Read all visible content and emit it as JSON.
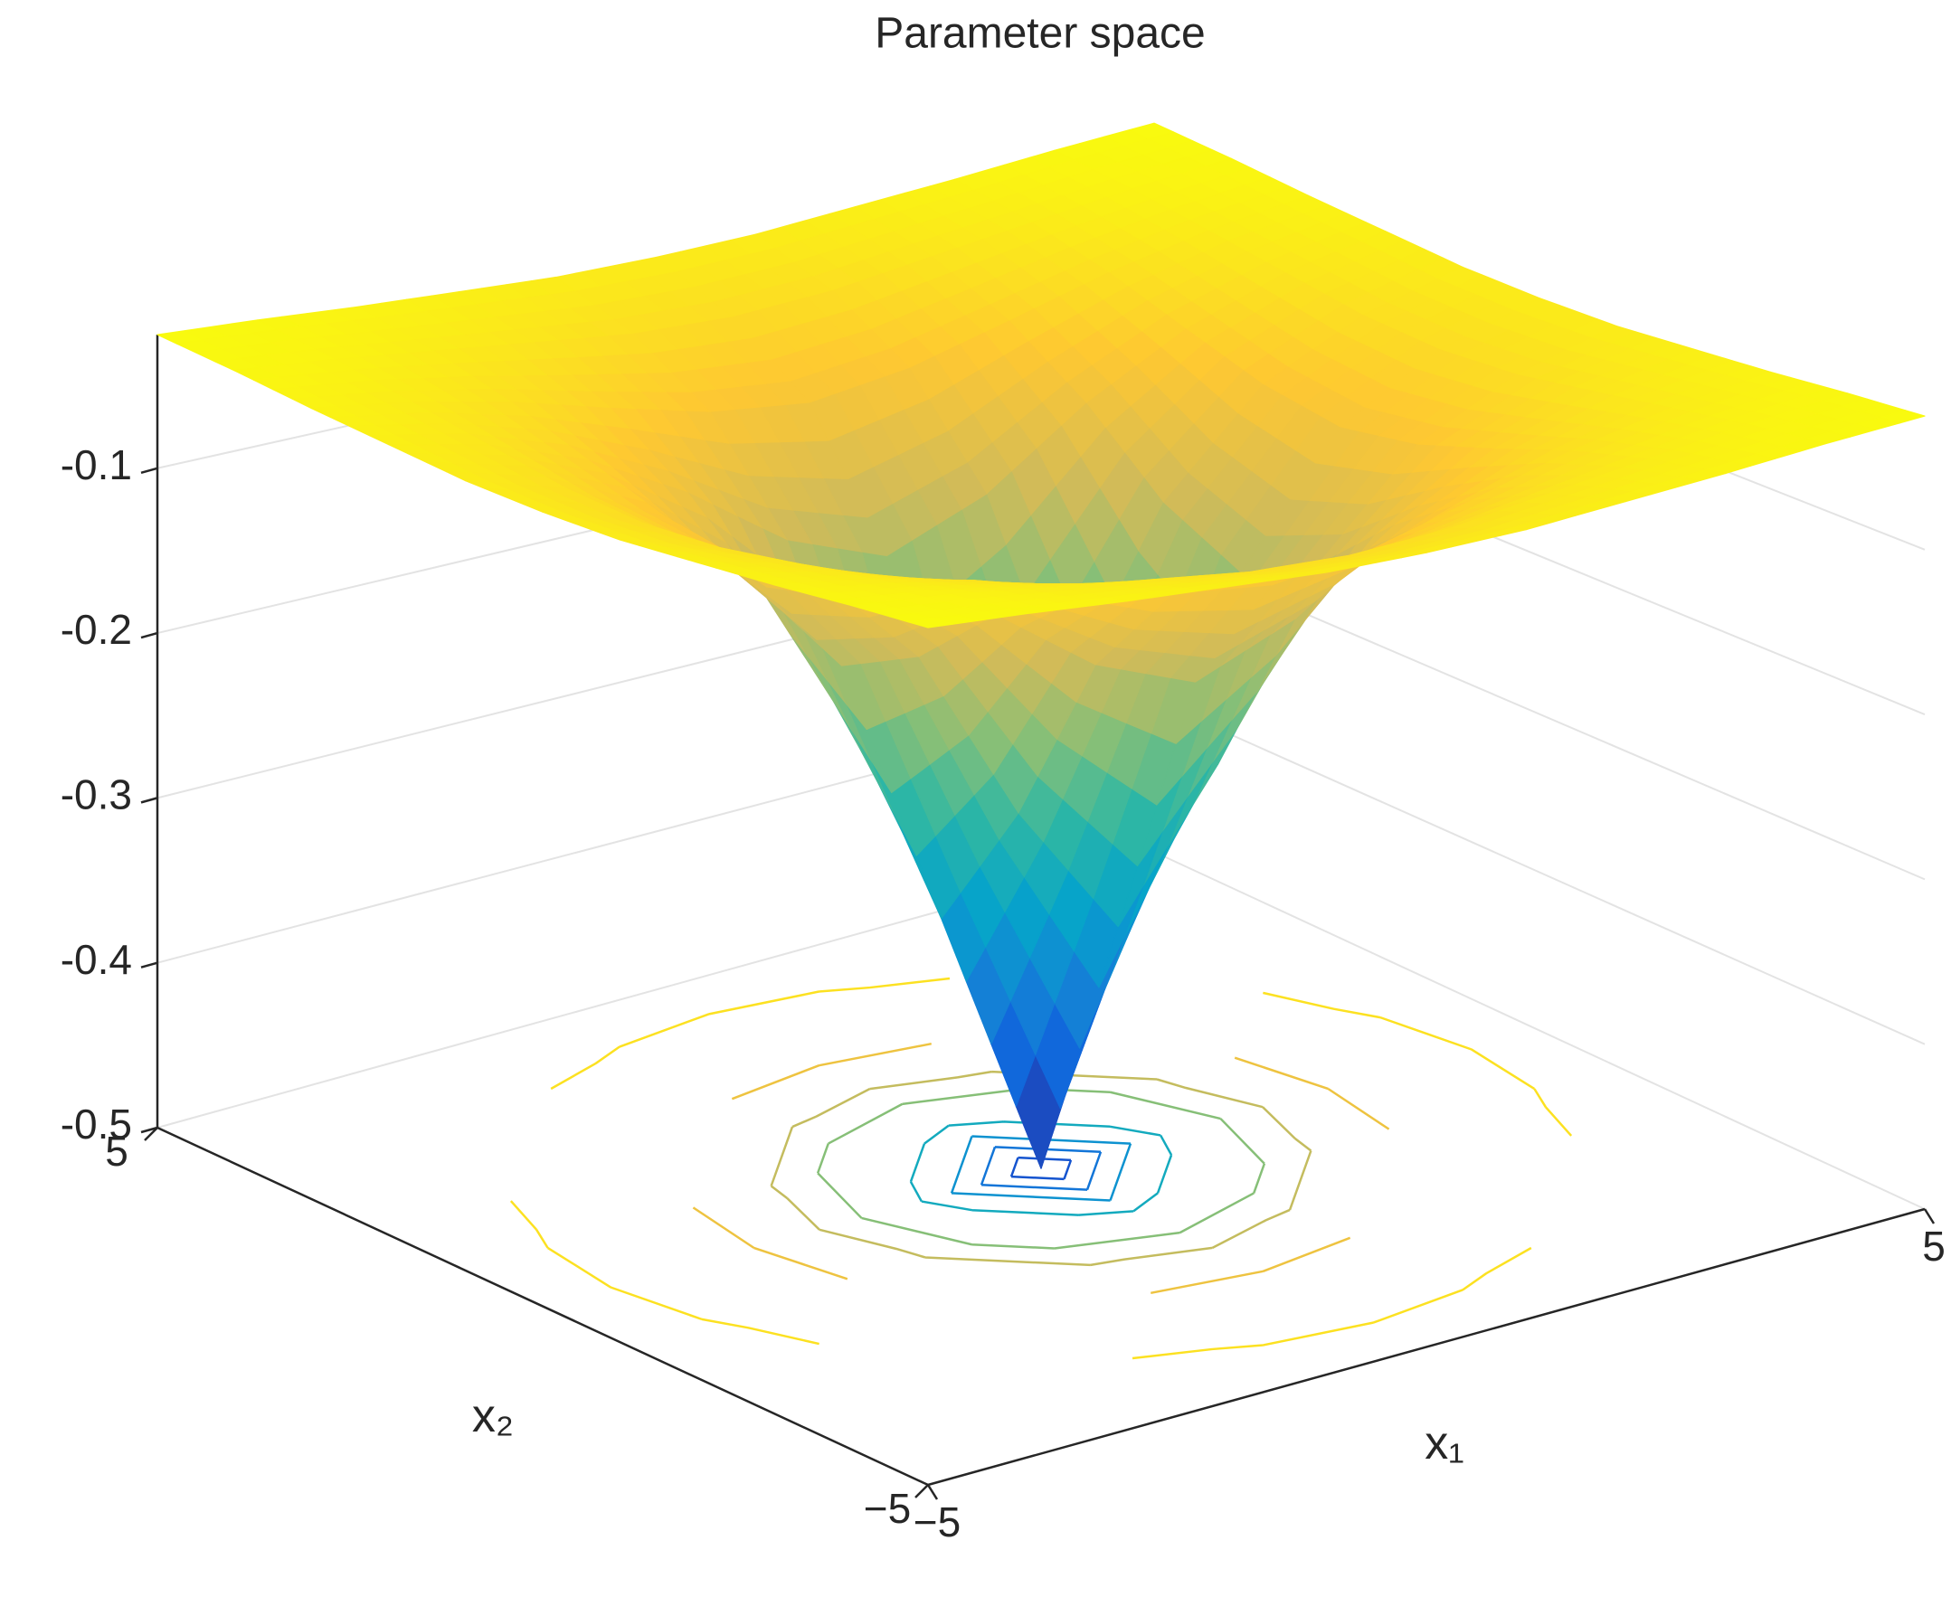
{
  "chart_data": {
    "type": "surface",
    "title": "Parameter space",
    "xlabel": "x₁",
    "ylabel": "x₂",
    "x": [
      -5,
      -4,
      -3,
      -2,
      -1,
      0,
      1,
      2,
      3,
      4,
      5
    ],
    "y": [
      -5,
      -4,
      -3,
      -2,
      -1,
      0,
      1,
      2,
      3,
      4,
      5
    ],
    "z": [
      [
        -0.019,
        -0.023,
        -0.028,
        -0.032,
        -0.036,
        -0.037,
        -0.036,
        -0.032,
        -0.028,
        -0.023,
        -0.019
      ],
      [
        -0.023,
        -0.029,
        -0.037,
        -0.045,
        -0.053,
        -0.056,
        -0.053,
        -0.045,
        -0.037,
        -0.029,
        -0.023
      ],
      [
        -0.028,
        -0.037,
        -0.05,
        -0.067,
        -0.083,
        -0.091,
        -0.083,
        -0.067,
        -0.05,
        -0.037,
        -0.028
      ],
      [
        -0.032,
        -0.045,
        -0.067,
        -0.1,
        -0.143,
        -0.167,
        -0.143,
        -0.1,
        -0.067,
        -0.045,
        -0.032
      ],
      [
        -0.036,
        -0.053,
        -0.083,
        -0.143,
        -0.25,
        -0.333,
        -0.25,
        -0.143,
        -0.083,
        -0.053,
        -0.036
      ],
      [
        -0.037,
        -0.056,
        -0.091,
        -0.167,
        -0.333,
        -0.5,
        -0.333,
        -0.167,
        -0.091,
        -0.056,
        -0.037
      ],
      [
        -0.036,
        -0.053,
        -0.083,
        -0.143,
        -0.25,
        -0.333,
        -0.25,
        -0.143,
        -0.083,
        -0.053,
        -0.036
      ],
      [
        -0.032,
        -0.045,
        -0.067,
        -0.1,
        -0.143,
        -0.167,
        -0.143,
        -0.1,
        -0.067,
        -0.045,
        -0.032
      ],
      [
        -0.028,
        -0.037,
        -0.05,
        -0.067,
        -0.083,
        -0.091,
        -0.083,
        -0.067,
        -0.05,
        -0.037,
        -0.028
      ],
      [
        -0.023,
        -0.029,
        -0.037,
        -0.045,
        -0.053,
        -0.056,
        -0.053,
        -0.045,
        -0.037,
        -0.029,
        -0.023
      ],
      [
        -0.019,
        -0.023,
        -0.028,
        -0.032,
        -0.036,
        -0.037,
        -0.036,
        -0.032,
        -0.028,
        -0.023,
        -0.019
      ]
    ],
    "xlim": [
      -5,
      5
    ],
    "ylim": [
      -5,
      5
    ],
    "zlim": [
      -0.5,
      -0.019
    ],
    "xticks": [
      {
        "value": -5,
        "label": "−5"
      },
      5
    ],
    "yticks": [
      {
        "value": -5,
        "label": "−5"
      },
      5
    ],
    "zticks": [
      -0.5,
      -0.4,
      -0.3,
      -0.2,
      -0.1
    ],
    "contour_levels": [
      -0.45,
      -0.4,
      -0.35,
      -0.3,
      -0.25,
      -0.2,
      -0.15,
      -0.1,
      -0.05
    ],
    "colormap": [
      "#352a87",
      "#0f5cdd",
      "#1481d6",
      "#06a4ca",
      "#2eb7a4",
      "#87bf77",
      "#d1bb59",
      "#fec832",
      "#f9fb0e"
    ],
    "grid": true
  }
}
